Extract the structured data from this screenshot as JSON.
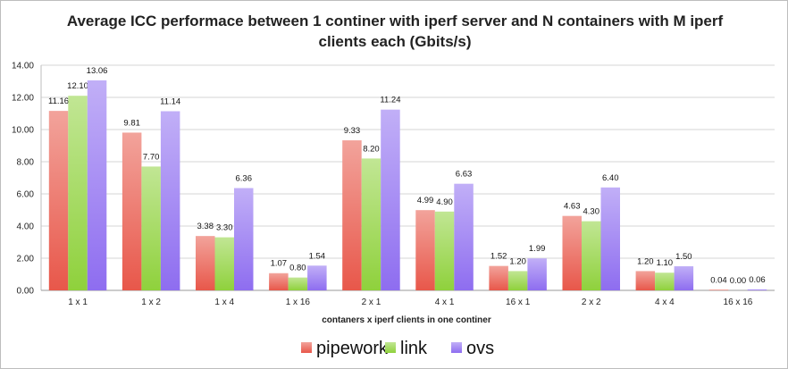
{
  "chart_data": {
    "type": "bar",
    "title_line1": "Average ICC performace between 1 continer with iperf server and N containers with M iperf",
    "title_line2": "clients each (Gbits/s)",
    "xlabel": "contaners x iperf clients in one continer",
    "ylabel": "",
    "ylim": [
      0,
      14
    ],
    "yticks": [
      "0.00",
      "2.00",
      "4.00",
      "6.00",
      "8.00",
      "10.00",
      "12.00",
      "14.00"
    ],
    "grid": true,
    "legend_position": "bottom",
    "categories": [
      "1 x 1",
      "1 x 2",
      "1 x 4",
      "1 x 16",
      "2 x 1",
      "4 x 1",
      "16 x 1",
      "2 x 2",
      "4 x 4",
      "16 x 16"
    ],
    "series": [
      {
        "name": "pipework",
        "color": "#e8574a",
        "values": [
          11.16,
          9.81,
          3.38,
          1.07,
          9.33,
          4.99,
          1.52,
          4.63,
          1.2,
          0.04
        ],
        "labels": [
          "11.16",
          "9.81",
          "3.38",
          "1.07",
          "9.33",
          "4.99",
          "1.52",
          "4.63",
          "1.20",
          "0.04"
        ]
      },
      {
        "name": "link",
        "color": "#8fd13c",
        "values": [
          12.1,
          7.7,
          3.3,
          0.8,
          8.2,
          4.9,
          1.2,
          4.3,
          1.1,
          0.0
        ],
        "labels": [
          "12.10",
          "7.70",
          "3.30",
          "0.80",
          "8.20",
          "4.90",
          "1.20",
          "4.30",
          "1.10",
          "0.00"
        ]
      },
      {
        "name": "ovs",
        "color": "#8e6df0",
        "values": [
          13.06,
          11.14,
          6.36,
          1.54,
          11.24,
          6.63,
          1.99,
          6.4,
          1.5,
          0.06
        ],
        "labels": [
          "13.06",
          "11.14",
          "6.36",
          "1.54",
          "11.24",
          "6.63",
          "1.99",
          "6.40",
          "1.50",
          "0.06"
        ]
      }
    ]
  }
}
